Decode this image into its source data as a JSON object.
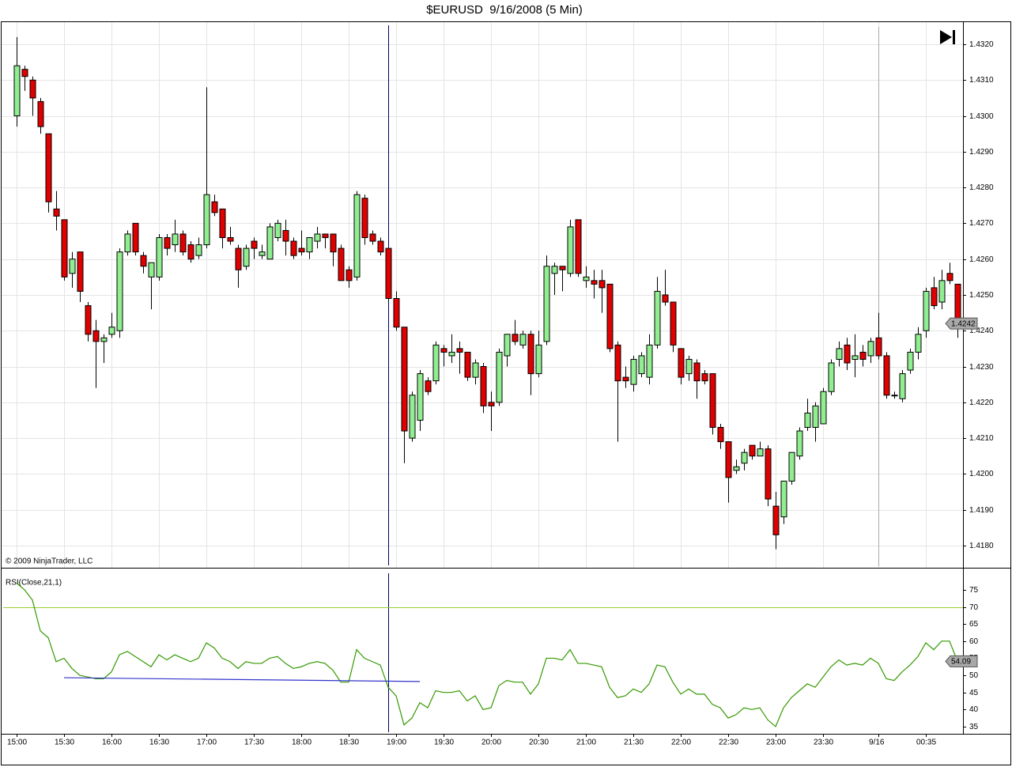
{
  "chart_data": [
    {
      "type": "candlestick",
      "title": "$EURUSD  9/16/2008 (5 Min)",
      "copyright": "© 2009 NinjaTrader, LLC",
      "categories": [
        "15:00",
        null,
        null,
        null,
        null,
        null,
        "15:30",
        null,
        null,
        null,
        null,
        null,
        "16:00",
        null,
        null,
        null,
        null,
        null,
        "16:30",
        null,
        null,
        null,
        null,
        null,
        "17:00",
        null,
        null,
        null,
        null,
        null,
        "17:30",
        null,
        null,
        null,
        null,
        null,
        "18:00",
        null,
        null,
        null,
        null,
        null,
        "18:30",
        null,
        null,
        null,
        null,
        null,
        "19:00",
        null,
        null,
        null,
        null,
        null,
        "19:30",
        null,
        null,
        null,
        null,
        null,
        "20:00",
        null,
        null,
        null,
        null,
        null,
        "20:30",
        null,
        null,
        null,
        null,
        null,
        "21:00",
        null,
        null,
        null,
        null,
        null,
        "21:30",
        null,
        null,
        null,
        null,
        null,
        "22:00",
        null,
        null,
        null,
        null,
        null,
        "22:30",
        null,
        null,
        null,
        null,
        null,
        "23:00",
        null,
        null,
        null,
        null,
        null,
        "23:30",
        null,
        null,
        null,
        null,
        null,
        null,
        "9/16",
        null,
        null,
        null,
        null,
        null,
        "00:35",
        null,
        null,
        null,
        null
      ],
      "open": [
        1.43,
        1.4313,
        1.431,
        1.4304,
        1.4295,
        1.4274,
        1.4271,
        1.4256,
        1.4262,
        1.4247,
        1.424,
        1.4237,
        1.4239,
        1.424,
        1.4262,
        1.427,
        1.4261,
        1.4255,
        1.4255,
        1.4266,
        1.4264,
        1.4267,
        1.4264,
        1.4261,
        1.4264,
        1.4276,
        1.4274,
        1.4266,
        1.4263,
        1.4258,
        1.4265,
        1.4261,
        1.426,
        1.4266,
        1.4268,
        1.4265,
        1.4263,
        1.4262,
        1.4265,
        1.4267,
        1.4267,
        1.4263,
        1.4257,
        1.4255,
        1.4277,
        1.4267,
        1.4265,
        1.4263,
        1.4249,
        1.4241,
        1.421,
        1.4215,
        1.4226,
        1.4226,
        1.4235,
        1.4233,
        1.4235,
        1.4234,
        1.4227,
        1.423,
        1.422,
        1.422,
        1.4233,
        1.4239,
        1.4236,
        1.4239,
        1.4228,
        1.4237,
        1.4256,
        1.4258,
        1.4256,
        1.4271,
        1.4254,
        1.4254,
        1.4254,
        1.4253,
        1.4236,
        1.4227,
        1.4225,
        1.4228,
        1.4227,
        1.4236,
        1.425,
        1.4248,
        1.4235,
        1.4228,
        1.4231,
        1.4228,
        1.4228,
        1.4213,
        1.4209,
        1.4201,
        1.4203,
        1.4208,
        1.4205,
        1.4207,
        1.4191,
        1.4188,
        1.4198,
        1.4205,
        1.4213,
        1.4213,
        1.4214,
        1.4223,
        1.4232,
        1.4236,
        1.4232,
        1.4234,
        1.4233,
        1.4238,
        1.4233,
        1.4222,
        1.4221,
        1.4229,
        1.4234,
        1.424,
        1.4252,
        1.4248,
        1.4256,
        1.4253
      ],
      "high": [
        1.4322,
        1.4314,
        1.4311,
        1.4305,
        1.4295,
        1.4279,
        1.4271,
        1.4262,
        1.4262,
        1.4248,
        1.4243,
        1.4239,
        1.4245,
        1.4263,
        1.4268,
        1.427,
        1.4262,
        1.4259,
        1.4267,
        1.4267,
        1.4271,
        1.4268,
        1.4265,
        1.4266,
        1.4308,
        1.4278,
        1.4274,
        1.4269,
        1.4264,
        1.4264,
        1.4266,
        1.4264,
        1.427,
        1.4271,
        1.4271,
        1.4266,
        1.4268,
        1.4266,
        1.4269,
        1.4267,
        1.4267,
        1.4264,
        1.4258,
        1.4279,
        1.4278,
        1.4268,
        1.4266,
        1.4263,
        1.4251,
        1.4241,
        1.4223,
        1.4229,
        1.4227,
        1.4237,
        1.4236,
        1.4239,
        1.4237,
        1.4234,
        1.4232,
        1.4231,
        1.4223,
        1.4235,
        1.4239,
        1.4243,
        1.424,
        1.424,
        1.424,
        1.4261,
        1.4259,
        1.4258,
        1.4271,
        1.4271,
        1.4258,
        1.4257,
        1.4257,
        1.4253,
        1.4237,
        1.423,
        1.4233,
        1.4234,
        1.4239,
        1.4255,
        1.4257,
        1.4248,
        1.4235,
        1.4233,
        1.4232,
        1.4229,
        1.4228,
        1.4214,
        1.4209,
        1.4204,
        1.4207,
        1.4208,
        1.4209,
        1.4208,
        1.4195,
        1.4198,
        1.4206,
        1.4213,
        1.4221,
        1.422,
        1.4224,
        1.4232,
        1.4237,
        1.4238,
        1.4239,
        1.4236,
        1.4238,
        1.4245,
        1.4234,
        1.4223,
        1.4229,
        1.4235,
        1.4241,
        1.4252,
        1.4255,
        1.4257,
        1.4259,
        1.4253
      ],
      "low": [
        1.4297,
        1.4307,
        1.43,
        1.4295,
        1.4273,
        1.4268,
        1.4254,
        1.4252,
        1.4248,
        1.4237,
        1.4224,
        1.4231,
        1.4238,
        1.4238,
        1.4261,
        1.4261,
        1.4256,
        1.4246,
        1.4254,
        1.4261,
        1.4262,
        1.4261,
        1.4259,
        1.426,
        1.4263,
        1.4272,
        1.4263,
        1.4264,
        1.4252,
        1.4257,
        1.426,
        1.426,
        1.426,
        1.4265,
        1.4261,
        1.426,
        1.4261,
        1.426,
        1.4263,
        1.4263,
        1.4258,
        1.4254,
        1.4252,
        1.4254,
        1.4264,
        1.4264,
        1.4261,
        1.4248,
        1.424,
        1.4203,
        1.4209,
        1.4212,
        1.4222,
        1.4225,
        1.423,
        1.4231,
        1.4228,
        1.4226,
        1.4225,
        1.4217,
        1.4212,
        1.4219,
        1.423,
        1.4236,
        1.4235,
        1.4222,
        1.4227,
        1.4236,
        1.425,
        1.4251,
        1.4255,
        1.4255,
        1.4252,
        1.4249,
        1.4245,
        1.4234,
        1.4209,
        1.4224,
        1.4223,
        1.4227,
        1.4225,
        1.4235,
        1.4247,
        1.4234,
        1.4225,
        1.4226,
        1.4221,
        1.4225,
        1.4211,
        1.4207,
        1.4192,
        1.42,
        1.4201,
        1.4204,
        1.4205,
        1.4191,
        1.4179,
        1.4186,
        1.4197,
        1.4204,
        1.4212,
        1.4209,
        1.4214,
        1.4222,
        1.423,
        1.4229,
        1.4227,
        1.423,
        1.4231,
        1.4232,
        1.4221,
        1.4221,
        1.422,
        1.4228,
        1.4232,
        1.4238,
        1.4246,
        1.4246,
        1.4253,
        1.4238
      ],
      "close": [
        1.4314,
        1.4311,
        1.4305,
        1.4297,
        1.4276,
        1.4272,
        1.4255,
        1.426,
        1.4251,
        1.4239,
        1.4237,
        1.4238,
        1.4241,
        1.4262,
        1.4267,
        1.4262,
        1.4258,
        1.4259,
        1.4266,
        1.4263,
        1.4267,
        1.4262,
        1.426,
        1.4264,
        1.4278,
        1.4273,
        1.4266,
        1.4265,
        1.4257,
        1.4263,
        1.4263,
        1.4262,
        1.4269,
        1.427,
        1.4265,
        1.4261,
        1.4262,
        1.4266,
        1.4267,
        1.4266,
        1.4262,
        1.4254,
        1.4254,
        1.4278,
        1.4266,
        1.4265,
        1.4262,
        1.4249,
        1.4241,
        1.4212,
        1.4222,
        1.4228,
        1.4223,
        1.4236,
        1.4234,
        1.4234,
        1.4234,
        1.4227,
        1.4231,
        1.4219,
        1.4219,
        1.4234,
        1.4239,
        1.4237,
        1.4239,
        1.4228,
        1.4236,
        1.4258,
        1.4258,
        1.4257,
        1.4269,
        1.4256,
        1.4255,
        1.4253,
        1.4252,
        1.4235,
        1.4226,
        1.4226,
        1.4232,
        1.4233,
        1.4236,
        1.4251,
        1.4248,
        1.4236,
        1.4227,
        1.4232,
        1.4226,
        1.4226,
        1.4213,
        1.4209,
        1.4199,
        1.4202,
        1.4206,
        1.4205,
        1.4207,
        1.4193,
        1.4183,
        1.4198,
        1.4206,
        1.4212,
        1.4217,
        1.4219,
        1.4223,
        1.4231,
        1.4235,
        1.4231,
        1.4233,
        1.4232,
        1.4237,
        1.4233,
        1.4222,
        1.4222,
        1.4228,
        1.4234,
        1.4239,
        1.4251,
        1.4247,
        1.4254,
        1.4254,
        1.4242
      ],
      "up_color": "#90ee90",
      "down_color": "#e00000",
      "ylim": [
        1.41738,
        1.43264
      ],
      "yticks": [
        {
          "value": 1.418,
          "label": "1.4180"
        },
        {
          "value": 1.419,
          "label": "1.4190"
        },
        {
          "value": 1.42,
          "label": "1.4200"
        },
        {
          "value": 1.421,
          "label": "1.4210"
        },
        {
          "value": 1.422,
          "label": "1.4220"
        },
        {
          "value": 1.423,
          "label": "1.4230"
        },
        {
          "value": 1.424,
          "label": "1.4240"
        },
        {
          "value": 1.425,
          "label": "1.4250"
        },
        {
          "value": 1.426,
          "label": "1.4260"
        },
        {
          "value": 1.427,
          "label": "1.4270"
        },
        {
          "value": 1.428,
          "label": "1.4280"
        },
        {
          "value": 1.429,
          "label": "1.4290"
        },
        {
          "value": 1.43,
          "label": "1.4300"
        },
        {
          "value": 1.431,
          "label": "1.4310"
        },
        {
          "value": 1.432,
          "label": "1.4320"
        }
      ],
      "grid": true,
      "day_break": 109,
      "marker_line": 47
    },
    {
      "type": "line",
      "name": "RSI(Close,21,1)",
      "color": "#339900",
      "values": [
        77,
        75,
        72,
        63,
        61,
        54,
        55,
        52,
        50,
        49.5,
        49,
        49,
        51,
        56,
        57,
        55.5,
        54,
        52.5,
        56,
        54.5,
        56,
        55,
        54,
        55,
        59.5,
        58,
        55,
        54,
        52,
        54,
        53.5,
        53.5,
        55,
        55.5,
        53.5,
        52,
        52.5,
        53.5,
        54,
        53.5,
        51.5,
        48,
        48,
        57.5,
        55,
        54,
        53,
        46.5,
        44,
        35.5,
        37.5,
        42,
        40.5,
        45.5,
        45,
        45,
        45.5,
        42.5,
        44,
        40,
        40.5,
        47,
        48.5,
        48,
        48,
        44.5,
        47.5,
        55,
        55,
        54.5,
        57.5,
        53.5,
        53.5,
        53,
        52.5,
        46.5,
        43.5,
        44,
        46,
        45,
        47.5,
        53,
        52.5,
        48,
        44.5,
        46,
        44.5,
        44.5,
        41.5,
        40.5,
        37.5,
        38.5,
        40.5,
        40,
        40.5,
        37,
        35,
        40.5,
        43.5,
        45.5,
        47.5,
        46.5,
        49.5,
        52.5,
        54.5,
        53,
        53.5,
        53,
        55,
        53.5,
        49,
        48.5,
        51,
        53,
        55.5,
        59.5,
        57.5,
        60,
        60,
        54.09
      ],
      "ylim": [
        32.9,
        81
      ],
      "yticks": [
        35,
        40,
        45,
        50,
        55,
        60,
        65,
        70,
        75
      ],
      "levels": [
        {
          "value": 70,
          "color": "#9acd32"
        }
      ],
      "trendline": {
        "color": "#3333cc",
        "start": 6,
        "end": 51,
        "values": [
          49.3,
          48.2
        ]
      }
    }
  ]
}
